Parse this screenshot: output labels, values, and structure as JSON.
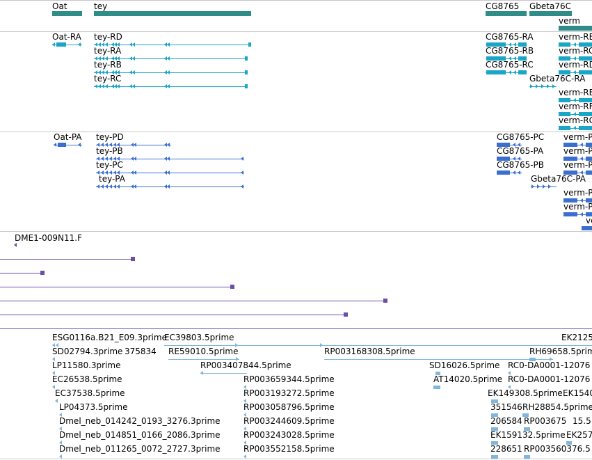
{
  "colors": {
    "gene": "#2f8c88",
    "transcript": "#1aa6c6",
    "protein": "#3a6fd0",
    "clone": "#6a4ea8",
    "est": "#7fb6dc",
    "separator": "#c6c6c6"
  },
  "tracks": {
    "genes": [
      {
        "label": "Oat"
      },
      {
        "label": "tey"
      },
      {
        "label": "CG8765"
      },
      {
        "label": "Gbeta76C"
      },
      {
        "label": "verm"
      }
    ],
    "transcripts": [
      {
        "label": "Oat-RA"
      },
      {
        "label": "tey-RD"
      },
      {
        "label": "tey-RA"
      },
      {
        "label": "tey-RB"
      },
      {
        "label": "tey-RC"
      },
      {
        "label": "CG8765-RA"
      },
      {
        "label": "CG8765-RB"
      },
      {
        "label": "CG8765-RC"
      },
      {
        "label": "Gbeta76C-RA"
      },
      {
        "label": "verm-RB"
      },
      {
        "label": "verm-RC"
      },
      {
        "label": "verm-RD"
      },
      {
        "label": "verm-RE"
      },
      {
        "label": "verm-RF"
      },
      {
        "label": "verm-RG"
      }
    ],
    "proteins": [
      {
        "label": "Oat-PA"
      },
      {
        "label": "tey-PD"
      },
      {
        "label": "tey-PB"
      },
      {
        "label": "tey-PC"
      },
      {
        "label": "tey-PA"
      },
      {
        "label": "CG8765-PC"
      },
      {
        "label": "CG8765-PA"
      },
      {
        "label": "CG8765-PB"
      },
      {
        "label": "Gbeta76C-PA"
      },
      {
        "label": "verm-P"
      },
      {
        "label": "verm-P"
      },
      {
        "label": "verm-P"
      },
      {
        "label": "verm-P"
      },
      {
        "label": "verm-P"
      },
      {
        "label": "ve"
      }
    ],
    "clones": [
      {
        "label": "DME1-009N11.F"
      }
    ],
    "ests": [
      {
        "label": "ESG0116a.B21_E09.3prime"
      },
      {
        "label": "EC39803.5prime"
      },
      {
        "label": "EK2125"
      },
      {
        "label": "SD02794.3prime"
      },
      {
        "label": "375834"
      },
      {
        "label": "RE59010.5prime"
      },
      {
        "label": "RP003168308.5prime"
      },
      {
        "label": "RH69658.5prime"
      },
      {
        "label": "LP11580.3prime"
      },
      {
        "label": "RP003407844.5prime"
      },
      {
        "label": "SD16026.5prime"
      },
      {
        "label": "RC0-DA0001-12076"
      },
      {
        "label": "EC26538.5prime"
      },
      {
        "label": "RP003659344.5prime"
      },
      {
        "label": "AT14020.5prime"
      },
      {
        "label": "RC0-DA0001-12076"
      },
      {
        "label": "EC37538.5prime"
      },
      {
        "label": "RP003193272.5prime"
      },
      {
        "label": "EK149308.5prime"
      },
      {
        "label": "EK1540"
      },
      {
        "label": "LP04373.5prime"
      },
      {
        "label": "RP003058796.5prime"
      },
      {
        "label": "351546"
      },
      {
        "label": "RH28854.5prime"
      },
      {
        "label": "Dmel_neb_014242_0193_3276.3prime"
      },
      {
        "label": "RP003244609.5prime"
      },
      {
        "label": "206584"
      },
      {
        "label": "RP003675"
      },
      {
        "label": "15.5"
      },
      {
        "label": "Dmel_neb_014851_0166_2086.3prime"
      },
      {
        "label": "RP003243028.5prime"
      },
      {
        "label": "EK159132.5prime"
      },
      {
        "label": "EK257"
      },
      {
        "label": "Dmel_neb_011265_0072_2727.3prime"
      },
      {
        "label": "RP003552158.5prime"
      },
      {
        "label": "228651"
      },
      {
        "label": "RP003560376.5"
      }
    ]
  }
}
